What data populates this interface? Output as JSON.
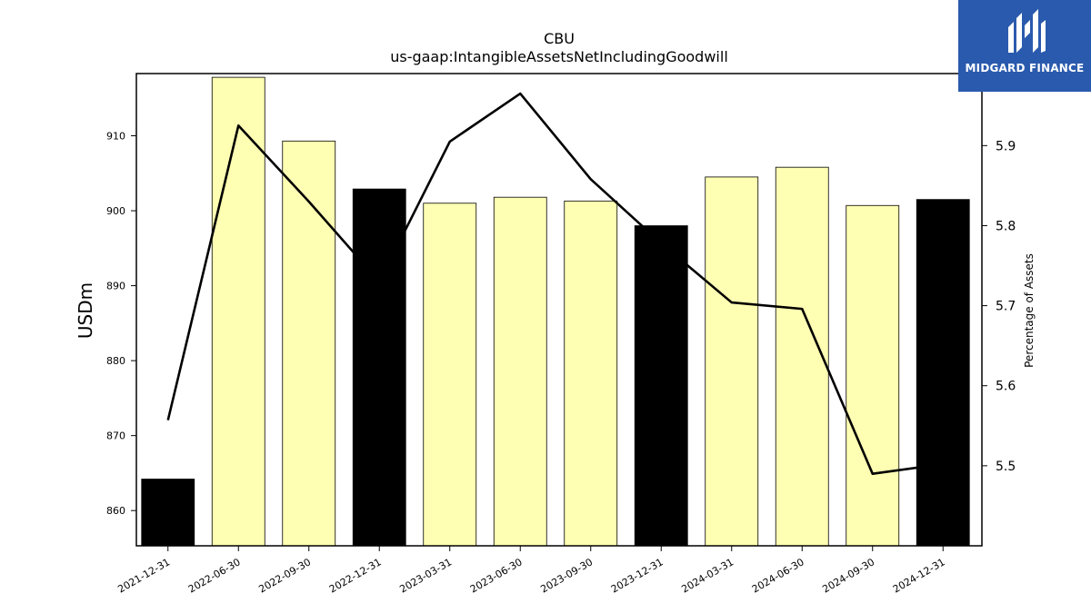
{
  "chart_data": {
    "type": "bar",
    "title": "CBU",
    "subtitle": "us-gaap:IntangibleAssetsNetIncludingGoodwill",
    "ylabel": "USDm",
    "y2label": "Percentage of Assets",
    "categories": [
      "2021-12-31",
      "2022-06-30",
      "2022-09-30",
      "2022-12-31",
      "2023-03-31",
      "2023-06-30",
      "2023-09-30",
      "2023-12-31",
      "2024-03-31",
      "2024-06-30",
      "2024-09-30",
      "2024-12-31"
    ],
    "series": [
      {
        "type": "bar",
        "axis": "left",
        "values": [
          864.2,
          917.8,
          909.3,
          902.9,
          901.0,
          901.8,
          901.3,
          898.0,
          904.5,
          905.8,
          900.7,
          901.5
        ],
        "colors": [
          "#000000",
          "#ffffb3",
          "#ffffb3",
          "#000000",
          "#ffffb3",
          "#ffffb3",
          "#ffffb3",
          "#000000",
          "#ffffb3",
          "#ffffb3",
          "#ffffb3",
          "#000000"
        ]
      },
      {
        "type": "line",
        "axis": "right",
        "values": [
          5.557,
          5.925,
          5.83,
          5.73,
          5.905,
          5.965,
          5.858,
          5.778,
          5.704,
          5.696,
          5.49,
          5.502
        ],
        "color": "#000000"
      }
    ],
    "ylim": [
      855.3,
      918.3
    ],
    "y2lim": [
      5.4,
      5.99
    ],
    "yticks": [
      860,
      870,
      880,
      890,
      900,
      910
    ],
    "y2ticks": [
      5.5,
      5.6,
      5.7,
      5.8,
      5.9
    ],
    "grid": false,
    "legend": "none"
  },
  "logo": {
    "text": "MIDGARD FINANCE",
    "background": "#2a5aad",
    "foreground": "#ffffff"
  }
}
